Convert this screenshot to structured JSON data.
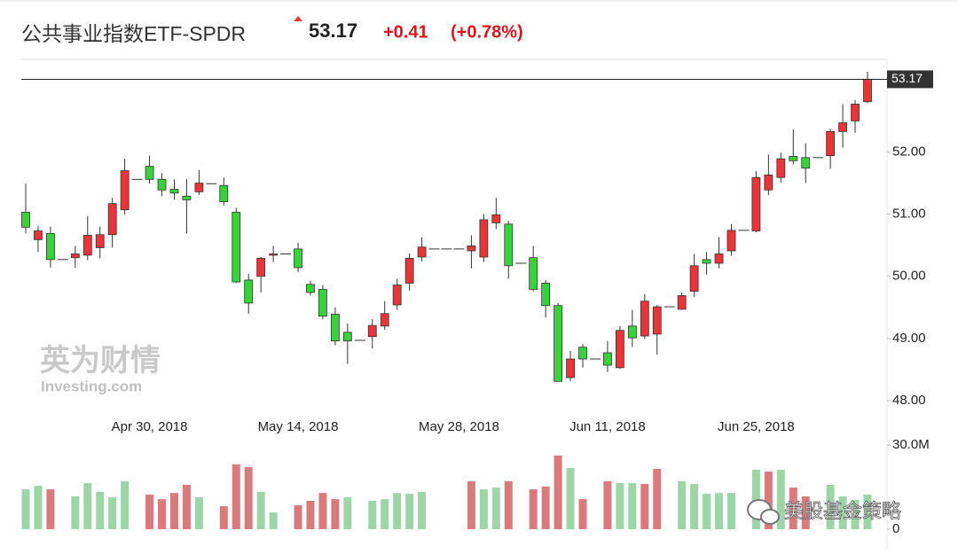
{
  "chart_data": {
    "type": "candlestick",
    "title": "公共事业指数ETF-SPDR",
    "last_price": 53.17,
    "change": "+0.41",
    "change_percent": "(+0.78%)",
    "watermarks": [
      "英为财情",
      "Investing.com",
      "美股基金策略"
    ],
    "up_color": "#e8353a",
    "down_color": "#37d23c",
    "categories": [
      null,
      null,
      null,
      null,
      null,
      null,
      null,
      null,
      null,
      null,
      "Apr 30, 2018",
      null,
      null,
      null,
      null,
      null,
      null,
      null,
      null,
      null,
      null,
      null,
      "May 14, 2018",
      null,
      null,
      null,
      null,
      null,
      null,
      null,
      null,
      null,
      null,
      null,
      null,
      "May 28, 2018",
      null,
      null,
      null,
      null,
      null,
      null,
      null,
      null,
      null,
      null,
      null,
      "Jun 11, 2018",
      null,
      null,
      null,
      null,
      null,
      null,
      null,
      null,
      null,
      null,
      null,
      "Jun 25, 2018",
      null,
      null,
      null,
      null,
      null,
      null,
      null,
      null,
      null
    ],
    "open": [
      51.03,
      50.59,
      50.69,
      50.27,
      50.3,
      50.34,
      50.46,
      50.67,
      51.07,
      51.56,
      51.77,
      51.56,
      51.4,
      51.29,
      51.36,
      51.49,
      51.46,
      51.03,
      49.94,
      50.0,
      50.34,
      50.36,
      50.44,
      49.87,
      49.79,
      49.39,
      49.1,
      48.97,
      49.03,
      49.2,
      49.54,
      49.89,
      50.31,
      50.44,
      50.44,
      50.44,
      50.41,
      50.31,
      50.86,
      50.84,
      50.21,
      50.3,
      49.89,
      49.53,
      48.37,
      48.86,
      48.67,
      48.77,
      48.53,
      49.2,
      49.04,
      49.07,
      49.51,
      49.47,
      49.76,
      50.27,
      50.21,
      50.41,
      50.74,
      50.73,
      51.39,
      51.59,
      51.93,
      51.91,
      51.91,
      51.94,
      52.33,
      52.5,
      52.81
    ],
    "high": [
      51.49,
      50.81,
      50.8,
      50.27,
      50.49,
      50.97,
      50.8,
      51.26,
      51.89,
      51.56,
      51.94,
      51.66,
      51.56,
      51.56,
      51.71,
      51.49,
      51.59,
      51.1,
      50.04,
      50.31,
      50.49,
      50.36,
      50.54,
      49.93,
      49.86,
      49.5,
      49.24,
      48.97,
      49.31,
      49.6,
      49.96,
      50.37,
      50.63,
      50.44,
      50.44,
      50.44,
      50.66,
      51.0,
      51.26,
      50.89,
      50.21,
      50.49,
      49.94,
      49.57,
      48.8,
      48.91,
      48.67,
      48.96,
      49.2,
      49.46,
      49.71,
      49.54,
      49.51,
      49.74,
      50.36,
      50.39,
      50.63,
      50.84,
      50.74,
      51.69,
      51.96,
      51.99,
      52.36,
      52.14,
      51.91,
      52.37,
      52.77,
      52.84,
      53.29
    ],
    "low": [
      50.69,
      50.39,
      50.14,
      50.27,
      50.14,
      50.26,
      50.29,
      50.46,
      50.99,
      51.56,
      51.49,
      51.29,
      51.23,
      50.69,
      51.31,
      51.49,
      51.14,
      49.89,
      49.4,
      49.74,
      50.23,
      50.36,
      50.07,
      49.69,
      49.31,
      48.89,
      48.59,
      48.97,
      48.84,
      49.14,
      49.46,
      49.77,
      50.24,
      50.44,
      50.44,
      50.44,
      50.13,
      50.23,
      50.76,
      49.96,
      50.21,
      49.76,
      49.34,
      48.31,
      48.31,
      48.53,
      48.67,
      48.46,
      48.51,
      48.86,
      48.99,
      48.74,
      49.51,
      49.46,
      49.67,
      50.03,
      50.13,
      50.33,
      50.74,
      50.71,
      51.31,
      51.51,
      51.8,
      51.5,
      51.91,
      51.73,
      52.07,
      52.31,
      52.79
    ],
    "close": [
      50.79,
      50.73,
      50.27,
      50.27,
      50.36,
      50.66,
      50.67,
      51.17,
      51.7,
      51.56,
      51.56,
      51.39,
      51.34,
      51.23,
      51.5,
      51.49,
      51.2,
      49.91,
      49.57,
      50.29,
      50.36,
      50.36,
      50.14,
      49.74,
      49.36,
      48.96,
      48.96,
      48.97,
      49.21,
      49.4,
      49.86,
      50.29,
      50.47,
      50.44,
      50.44,
      50.44,
      50.49,
      50.91,
      50.99,
      50.17,
      50.21,
      49.79,
      49.53,
      48.31,
      48.67,
      48.67,
      48.67,
      48.57,
      49.13,
      49.01,
      49.6,
      49.51,
      49.51,
      49.69,
      50.17,
      50.21,
      50.36,
      50.74,
      50.74,
      51.59,
      51.63,
      51.89,
      51.86,
      51.74,
      51.91,
      52.33,
      52.47,
      52.77,
      53.17
    ],
    "volume": [
      14.2,
      15.5,
      14.2,
      null,
      11.7,
      16.4,
      13.3,
      11.4,
      17.1,
      null,
      12.3,
      10.7,
      12.9,
      15.8,
      11.4,
      null,
      8.2,
      23.1,
      22.1,
      13.3,
      6.0,
      null,
      8.5,
      10.1,
      12.9,
      10.7,
      11.4,
      null,
      10.1,
      10.7,
      12.9,
      12.6,
      13.3,
      null,
      null,
      null,
      17.1,
      14.2,
      14.8,
      17.1,
      null,
      14.2,
      15.2,
      26.2,
      21.8,
      10.7,
      null,
      17.1,
      16.4,
      16.4,
      16.1,
      21.5,
      null,
      17.1,
      16.1,
      12.6,
      12.9,
      12.9,
      null,
      21.2,
      20.5,
      21.2,
      14.8,
      11.7,
      null,
      15.8,
      11.7,
      10.4,
      12.3
    ],
    "volume_colors": [
      "#9dd5a9",
      "#9dd5a9",
      "#d97a7c",
      null,
      "#9dd5a9",
      "#9dd5a9",
      "#9dd5a9",
      "#9dd5a9",
      "#9dd5a9",
      null,
      "#d97a7c",
      "#d97a7c",
      "#d97a7c",
      "#d97a7c",
      "#9dd5a9",
      null,
      "#d97a7c",
      "#d97a7c",
      "#d97a7c",
      "#9dd5a9",
      "#9dd5a9",
      null,
      "#d97a7c",
      "#d97a7c",
      "#d97a7c",
      "#d97a7c",
      "#9dd5a9",
      null,
      "#9dd5a9",
      "#9dd5a9",
      "#9dd5a9",
      "#9dd5a9",
      "#9dd5a9",
      null,
      null,
      null,
      "#d97a7c",
      "#9dd5a9",
      "#9dd5a9",
      "#d97a7c",
      null,
      "#d97a7c",
      "#d97a7c",
      "#d97a7c",
      "#9dd5a9",
      "#d97a7c",
      null,
      "#d97a7c",
      "#9dd5a9",
      "#9dd5a9",
      "#d97a7c",
      "#d97a7c",
      null,
      "#9dd5a9",
      "#9dd5a9",
      "#9dd5a9",
      "#9dd5a9",
      "#9dd5a9",
      null,
      "#9dd5a9",
      "#d97a7c",
      "#9dd5a9",
      "#d97a7c",
      "#d97a7c",
      null,
      "#9dd5a9",
      "#9dd5a9",
      "#9dd5a9",
      "#9dd5a9"
    ],
    "ylim": [
      47.8,
      53.49
    ],
    "yticks": [
      {
        "value": 48,
        "label": "48.00"
      },
      {
        "value": 49,
        "label": "49.00"
      },
      {
        "value": 50,
        "label": "50.00"
      },
      {
        "value": 51,
        "label": "51.00"
      },
      {
        "value": 52,
        "label": "52.00"
      }
    ],
    "y2lim": [
      0,
      30
    ],
    "y2ticks": [
      0,
      {
        "value": 30,
        "label": "30.0M"
      }
    ]
  }
}
